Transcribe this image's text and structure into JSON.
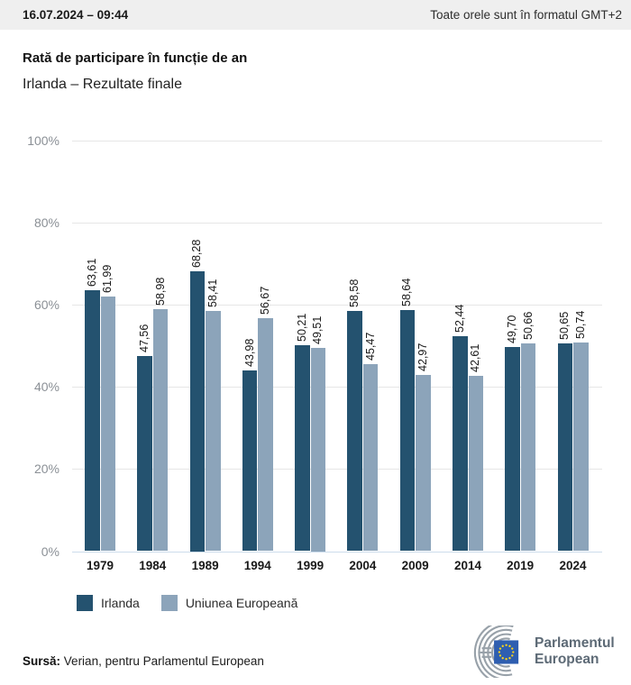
{
  "header": {
    "datetime": "16.07.2024 – 09:44",
    "timezone_note": "Toate orele sunt în formatul GMT+2"
  },
  "title": "Rată de participare în funcție de an",
  "subtitle": "Irlanda – Rezultate finale",
  "chart_data": {
    "type": "bar",
    "title": "Rată de participare în funcție de an",
    "subtitle": "Irlanda – Rezultate finale",
    "categories": [
      "1979",
      "1984",
      "1989",
      "1994",
      "1999",
      "2004",
      "2009",
      "2014",
      "2019",
      "2024"
    ],
    "series": [
      {
        "name": "Irlanda",
        "color": "#24526f",
        "values": [
          63.61,
          47.56,
          68.28,
          43.98,
          50.21,
          58.58,
          58.64,
          52.44,
          49.7,
          50.65
        ]
      },
      {
        "name": "Uniunea Europeană",
        "color": "#8ca4ba",
        "values": [
          61.99,
          58.98,
          58.41,
          56.67,
          49.51,
          45.47,
          42.97,
          42.61,
          50.66,
          50.74
        ]
      }
    ],
    "value_label_decimal_separator": ",",
    "xlabel": "",
    "ylabel": "",
    "ylim": [
      0,
      100
    ],
    "y_tick_labels": [
      "100%",
      "80%",
      "60%",
      "40%",
      "20%",
      "0%"
    ],
    "y_tick_values": [
      100,
      80,
      60,
      40,
      20,
      0
    ],
    "grid": true,
    "legend_position": "bottom"
  },
  "footer": {
    "source_label": "Sursă:",
    "source_text": "Verian, pentru Parlamentul European"
  },
  "logo": {
    "line1": "Parlamentul",
    "line2": "European",
    "flag_blue": "#2e5eb0",
    "star_yellow": "#ffd617",
    "arc_gray": "#98a1a9"
  },
  "colors": {
    "topbar_bg": "#efefef",
    "grid": "#e6e6e6",
    "axis_baseline": "#ccdcec"
  }
}
